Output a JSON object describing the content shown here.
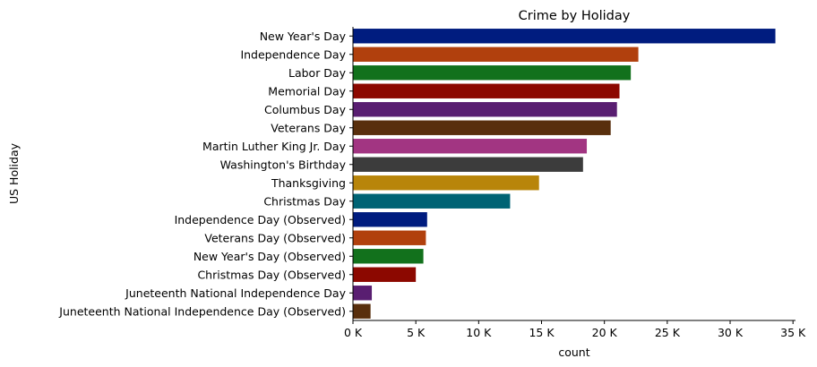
{
  "chart_data": {
    "type": "bar",
    "orientation": "horizontal",
    "title": "Crime by Holiday",
    "xlabel": "count",
    "ylabel": "US Holiday",
    "xlim": [
      0,
      35200
    ],
    "xticks": [
      0,
      5000,
      10000,
      15000,
      20000,
      25000,
      30000,
      35000
    ],
    "xtick_labels": [
      "0 K",
      "5 K",
      "10 K",
      "15 K",
      "20 K",
      "25 K",
      "30 K",
      "35 K"
    ],
    "grid": false,
    "categories": [
      "New Year's Day",
      "Independence Day",
      "Labor Day",
      "Memorial Day",
      "Columbus Day",
      "Veterans Day",
      "Martin Luther King Jr. Day",
      "Washington's Birthday",
      "Thanksgiving",
      "Christmas Day",
      "Independence Day (Observed)",
      "Veterans Day (Observed)",
      "New Year's Day (Observed)",
      "Christmas Day (Observed)",
      "Juneteenth National Independence Day",
      "Juneteenth National Independence Day (Observed)"
    ],
    "values": [
      33600,
      22700,
      22100,
      21200,
      21000,
      20500,
      18600,
      18300,
      14800,
      12500,
      5900,
      5800,
      5600,
      5000,
      1500,
      1400
    ],
    "colors": [
      "#001c7f",
      "#b1400d",
      "#12711c",
      "#8c0800",
      "#591e71",
      "#592f0d",
      "#a23582",
      "#3c3c3c",
      "#b8850a",
      "#006374",
      "#001c7f",
      "#b1400d",
      "#12711c",
      "#8c0800",
      "#591e71",
      "#592f0d"
    ]
  }
}
